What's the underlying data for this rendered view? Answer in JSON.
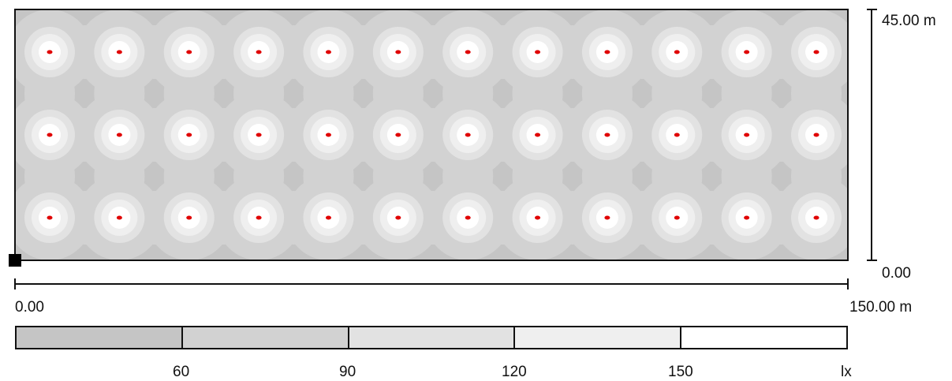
{
  "plan": {
    "y_max_label": "45.00 m",
    "y_min_label": "0.00",
    "x_min_label": "0.00",
    "x_max_label": "150.00 m",
    "grid": {
      "columns": 12,
      "rows": 3
    }
  },
  "colors": {
    "background_level": "#c5c5c5",
    "marker": "#e00000",
    "levels": [
      "#c5c5c5",
      "#d2d2d2",
      "#e2e2e2",
      "#efefef",
      "#ffffff"
    ]
  },
  "legend": {
    "ticks": [
      "60",
      "90",
      "120",
      "150"
    ],
    "unit": "lx"
  }
}
